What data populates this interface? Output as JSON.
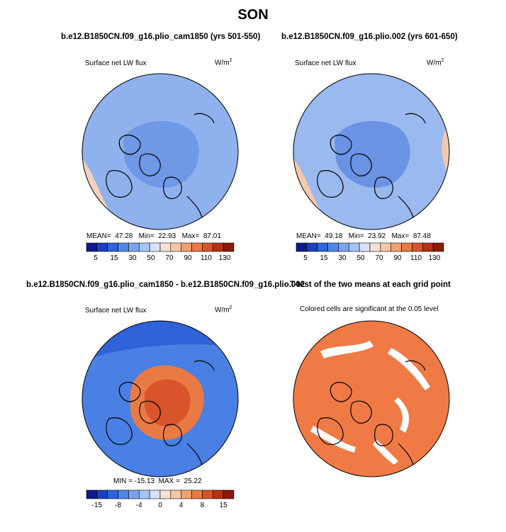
{
  "figure": {
    "title": "SON"
  },
  "panels": [
    {
      "id": "panel-1",
      "header": "b.e12.B1850CN.f09_g16.plio_cam1850 (yrs 501-550)",
      "variable": "Surface net LW flux",
      "units_base": "W/m",
      "units_exp": "2",
      "stats": {
        "mean_label": "MEAN=",
        "mean": "47.28",
        "min_label": "Min=",
        "min": "22.93",
        "max_label": "Max=",
        "max": "87.01"
      },
      "colorbar_colors": [
        "#0d1a8c",
        "#1a3fbf",
        "#2e63d9",
        "#4f86e8",
        "#7aa3ef",
        "#a6c3f5",
        "#d6e3f9",
        "#f6e2d4",
        "#f7c6a4",
        "#f2a070",
        "#ea7a44",
        "#d9542a",
        "#b93015",
        "#8b1a0a"
      ],
      "colorbar_ticks": [
        "5",
        "15",
        "30",
        "50",
        "70",
        "90",
        "110",
        "130"
      ],
      "main_fill": "#8fb1ed"
    },
    {
      "id": "panel-2",
      "header": "b.e12.B1850CN.f09_g16.plio.002 (yrs 601-650)",
      "variable": "Surface net LW flux",
      "units_base": "W/m",
      "units_exp": "2",
      "stats": {
        "mean_label": "MEAN=",
        "mean": "49.18",
        "min_label": "Min=",
        "min": "23.92",
        "max_label": "Max=",
        "max": "87.48"
      },
      "colorbar_colors": [
        "#0d1a8c",
        "#1a3fbf",
        "#2e63d9",
        "#4f86e8",
        "#7aa3ef",
        "#a6c3f5",
        "#d6e3f9",
        "#f6e2d4",
        "#f7c6a4",
        "#f2a070",
        "#ea7a44",
        "#d9542a",
        "#b93015",
        "#8b1a0a"
      ],
      "colorbar_ticks": [
        "5",
        "15",
        "30",
        "50",
        "70",
        "90",
        "110",
        "130"
      ],
      "main_fill": "#9ab9ef"
    },
    {
      "id": "panel-3",
      "header": "b.e12.B1850CN.f09_g16.plio_cam1850 - b.e12.B1850CN.f09_g16.plio.002",
      "variable": "Surface net LW flux",
      "units_base": "W/m",
      "units_exp": "2",
      "stats": {
        "min_label": "MIN =",
        "min": "-15.13",
        "max_label": "MAX =",
        "max": "25.22"
      },
      "colorbar_colors": [
        "#0d1a8c",
        "#1a3fbf",
        "#2e63d9",
        "#4f86e8",
        "#7aa3ef",
        "#a6c3f5",
        "#d6e3f9",
        "#f6e2d4",
        "#f7c6a4",
        "#f2a070",
        "#ea7a44",
        "#d9542a",
        "#b93015",
        "#8b1a0a"
      ],
      "colorbar_ticks": [
        "-15",
        "-8",
        "-4",
        "0",
        "4",
        "8",
        "15"
      ],
      "main_fill": "#4a7fe3"
    },
    {
      "id": "panel-4",
      "header": "T-test of the two means at each grid point",
      "note": "Colored cells are significant at the 0.05 level",
      "main_fill": "#f07a45"
    }
  ],
  "chart_data": [
    {
      "type": "heatmap",
      "title": "b.e12.B1850CN.f09_g16.plio_cam1850 (yrs 501-550)",
      "variable": "Surface net LW flux",
      "units": "W/m2",
      "colorbar_levels": [
        5,
        10,
        15,
        20,
        30,
        40,
        50,
        60,
        70,
        80,
        90,
        100,
        110,
        120,
        130
      ],
      "stats": {
        "mean": 47.28,
        "min": 22.93,
        "max": 87.01
      }
    },
    {
      "type": "heatmap",
      "title": "b.e12.B1850CN.f09_g16.plio.002 (yrs 601-650)",
      "variable": "Surface net LW flux",
      "units": "W/m2",
      "colorbar_levels": [
        5,
        10,
        15,
        20,
        30,
        40,
        50,
        60,
        70,
        80,
        90,
        100,
        110,
        120,
        130
      ],
      "stats": {
        "mean": 49.18,
        "min": 23.92,
        "max": 87.48
      }
    },
    {
      "type": "heatmap",
      "title": "b.e12.B1850CN.f09_g16.plio_cam1850 - b.e12.B1850CN.f09_g16.plio.002",
      "variable": "Surface net LW flux",
      "units": "W/m2",
      "colorbar_levels": [
        -15,
        -8,
        -4,
        0,
        4,
        8,
        15
      ],
      "stats": {
        "min": -15.13,
        "max": 25.22
      }
    },
    {
      "type": "heatmap",
      "title": "T-test of the two means at each grid point",
      "note": "Colored cells are significant at the 0.05 level",
      "significance_level": 0.05
    }
  ]
}
